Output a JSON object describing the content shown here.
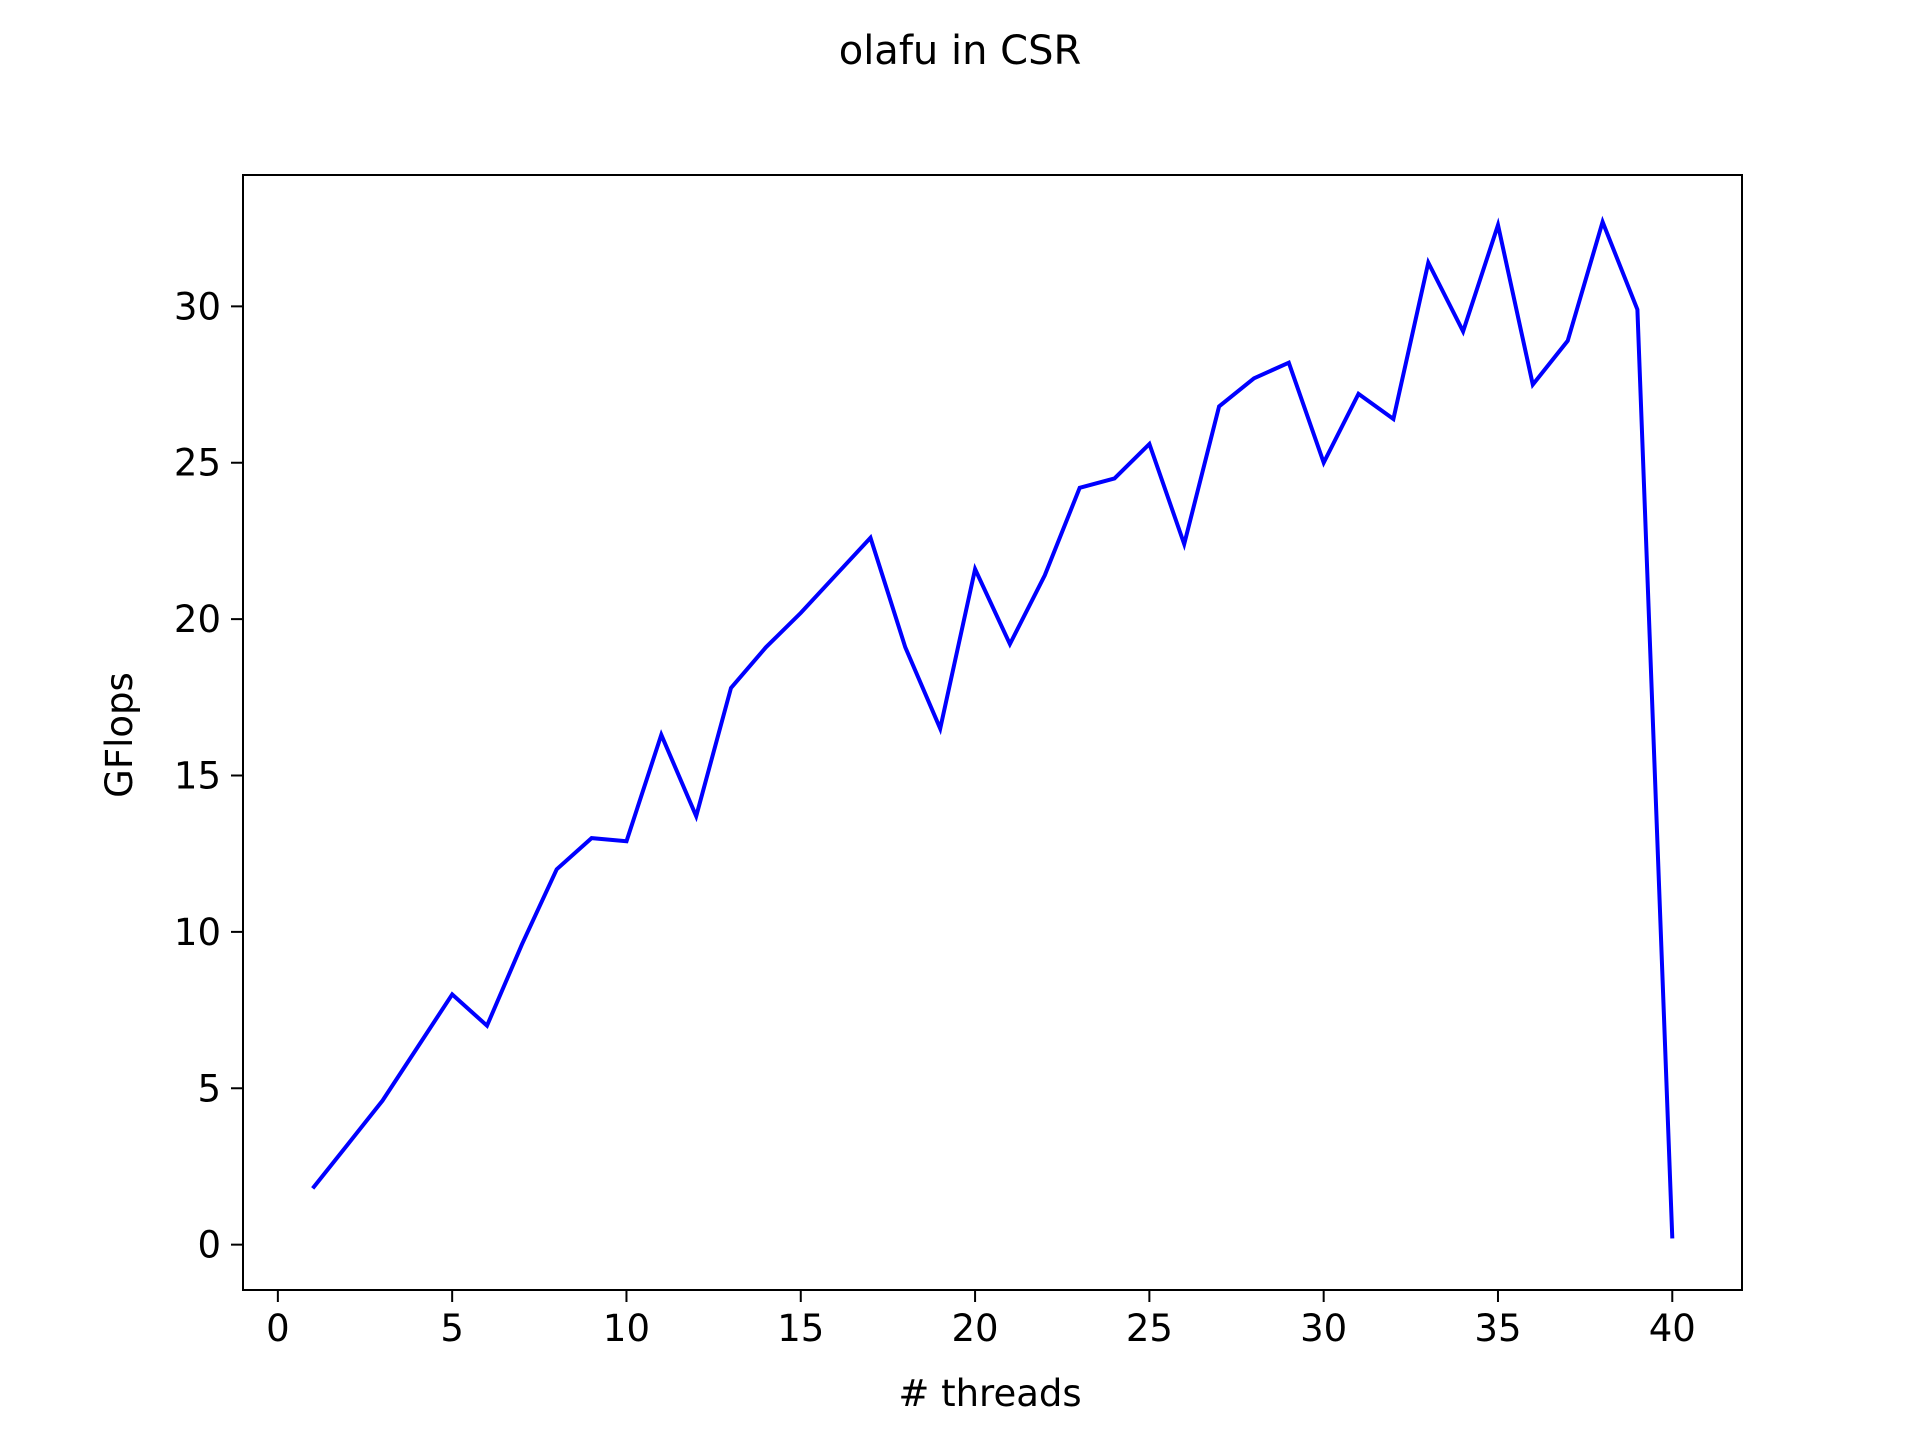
{
  "chart_data": {
    "type": "line",
    "title": "olafu in CSR",
    "xlabel": "# threads",
    "ylabel": "GFlops",
    "xlim": [
      -1,
      42
    ],
    "ylim": [
      -1.45,
      34.2
    ],
    "grid": false,
    "legend": "none",
    "xticks": [
      0,
      5,
      10,
      15,
      20,
      25,
      30,
      35,
      40
    ],
    "xtick_labels": [
      "0",
      "5",
      "10",
      "15",
      "20",
      "25",
      "30",
      "35",
      "40"
    ],
    "yticks": [
      0,
      5,
      10,
      15,
      20,
      25,
      30
    ],
    "ytick_labels": [
      "0",
      "5",
      "10",
      "15",
      "20",
      "25",
      "30"
    ],
    "series": [
      {
        "color": "#0000ff",
        "x": [
          1,
          2,
          3,
          4,
          5,
          6,
          7,
          8,
          9,
          10,
          11,
          12,
          13,
          14,
          15,
          16,
          17,
          18,
          19,
          20,
          21,
          22,
          23,
          24,
          25,
          26,
          27,
          28,
          29,
          30,
          31,
          32,
          33,
          34,
          35,
          36,
          37,
          38,
          39,
          40
        ],
        "y": [
          1.8,
          3.2,
          4.6,
          6.3,
          8.0,
          7.0,
          9.6,
          12.0,
          13.0,
          12.9,
          16.3,
          13.7,
          17.8,
          19.1,
          20.2,
          21.4,
          22.6,
          19.1,
          16.5,
          21.6,
          19.2,
          21.4,
          24.2,
          24.5,
          25.6,
          22.4,
          26.8,
          27.7,
          28.2,
          25.0,
          27.2,
          26.4,
          31.4,
          29.2,
          32.6,
          27.5,
          28.9,
          32.7,
          29.9,
          0.2
        ]
      }
    ]
  }
}
